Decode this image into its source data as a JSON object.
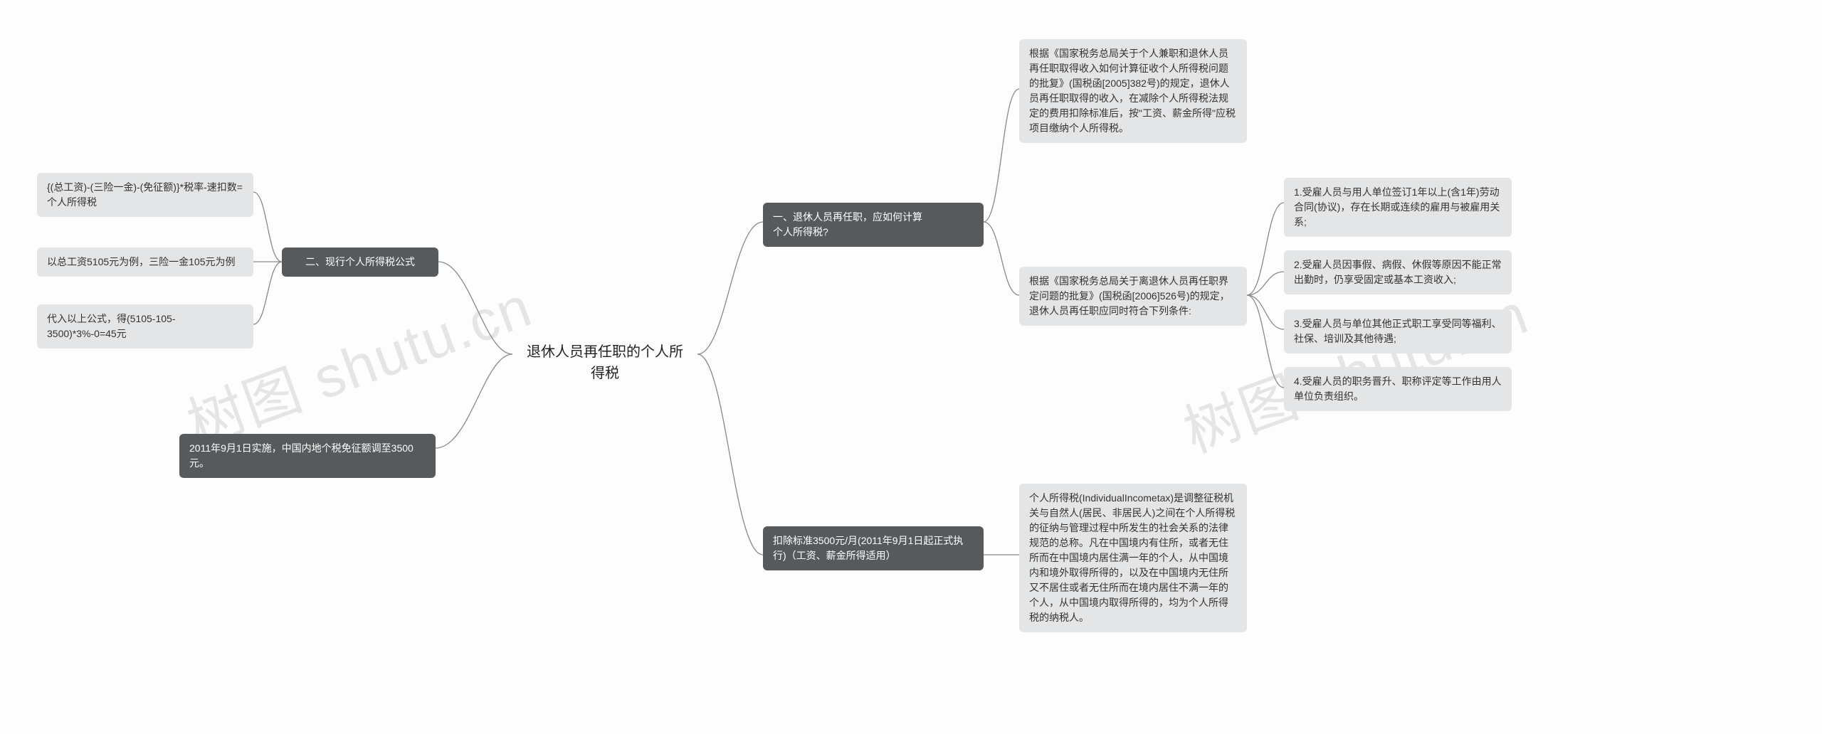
{
  "root": {
    "text": "退休人员再任职的个人所\n得税"
  },
  "right": {
    "r1": {
      "label": "一、退休人员再任职，应如何计算\n个人所得税?",
      "c1": "根据《国家税务总局关于个人兼职和退休人员再任职取得收入如何计算征收个人所得税问题的批复》(国税函[2005]382号)的规定，退休人员再任职取得的收入，在减除个人所得税法规定的费用扣除标准后，按\"工资、薪金所得\"应税项目缴纳个人所得税。",
      "c2": {
        "label": "根据《国家税务总局关于离退休人员再任职界定问题的批复》(国税函[2006]526号)的规定，退休人员再任职应同时符合下列条件:",
        "g1": "1.受雇人员与用人单位签订1年以上(含1年)劳动合同(协议)，存在长期或连续的雇用与被雇用关系;",
        "g2": "2.受雇人员因事假、病假、休假等原因不能正常出勤时，仍享受固定或基本工资收入;",
        "g3": "3.受雇人员与单位其他正式职工享受同等福利、社保、培训及其他待遇;",
        "g4": "4.受雇人员的职务晋升、职称评定等工作由用人单位负责组织。"
      }
    },
    "r2": {
      "label": "扣除标准3500元/月(2011年9月1日起正式执行)（工资、薪金所得适用）",
      "c1": "个人所得税(IndividualIncometax)是调整征税机关与自然人(居民、非居民人)之间在个人所得税的征纳与管理过程中所发生的社会关系的法律规范的总称。凡在中国境内有住所，或者无住所而在中国境内居住满一年的个人，从中国境内和境外取得所得的，以及在中国境内无住所又不居住或者无住所而在境内居住不满一年的个人，从中国境内取得所得的，均为个人所得税的纳税人。"
    }
  },
  "left": {
    "l1": {
      "label": "二、现行个人所得税公式",
      "c1": "{(总工资)-(三险一金)-(免征额)}*税率-速扣数=个人所得税",
      "c2": "以总工资5105元为例，三险一金105元为例",
      "c3": "代入以上公式，得(5105-105-3500)*3%-0=45元"
    },
    "l2": {
      "label": "2011年9月1日实施，中国内地个税免征额调至3500元。"
    }
  },
  "watermarks": [
    "树图 shutu.cn",
    "树图 shutu.cn"
  ],
  "style": {
    "bg": "#fdfdfd",
    "dark_bg": "#575a5c",
    "dark_fg": "#ffffff",
    "light_bg": "#e4e5e6",
    "light_fg": "#333333",
    "connector": "#888888",
    "font_root": 20,
    "font_node": 14
  }
}
